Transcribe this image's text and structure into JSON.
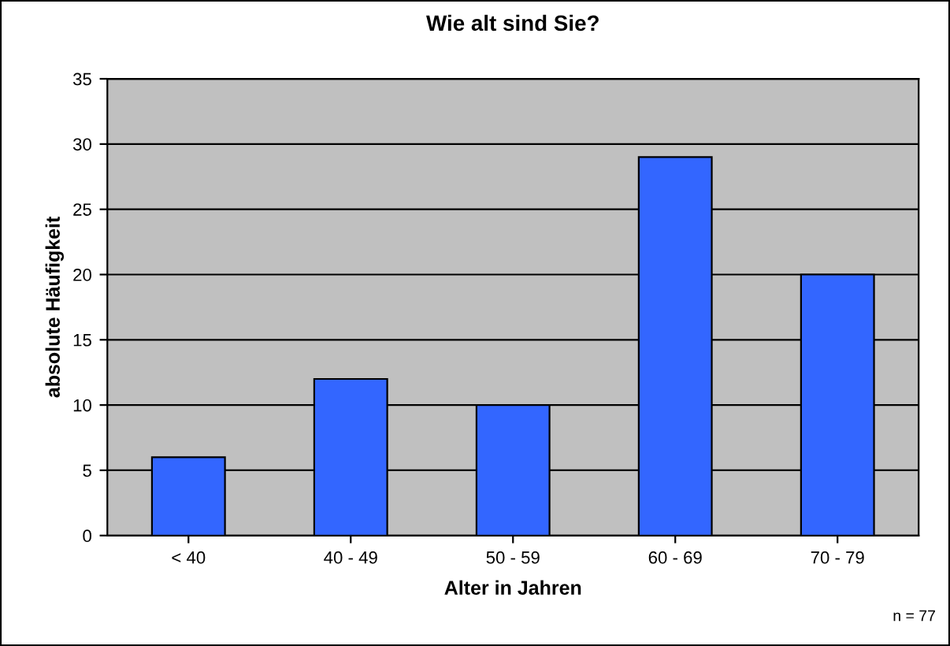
{
  "chart_data": {
    "type": "bar",
    "title": "Wie alt sind Sie?",
    "xlabel": "Alter in Jahren",
    "ylabel": "absolute Häufigkeit",
    "categories": [
      "< 40",
      "40 - 49",
      "50 - 59",
      "60 - 69",
      "70 - 79"
    ],
    "values": [
      6,
      12,
      10,
      29,
      20
    ],
    "color": "#3366ff",
    "ylim": [
      0,
      35
    ],
    "yticks": [
      0,
      5,
      10,
      15,
      20,
      25,
      30,
      35
    ],
    "grid": "y",
    "legend": false,
    "annotations": [
      "n = 77"
    ]
  }
}
